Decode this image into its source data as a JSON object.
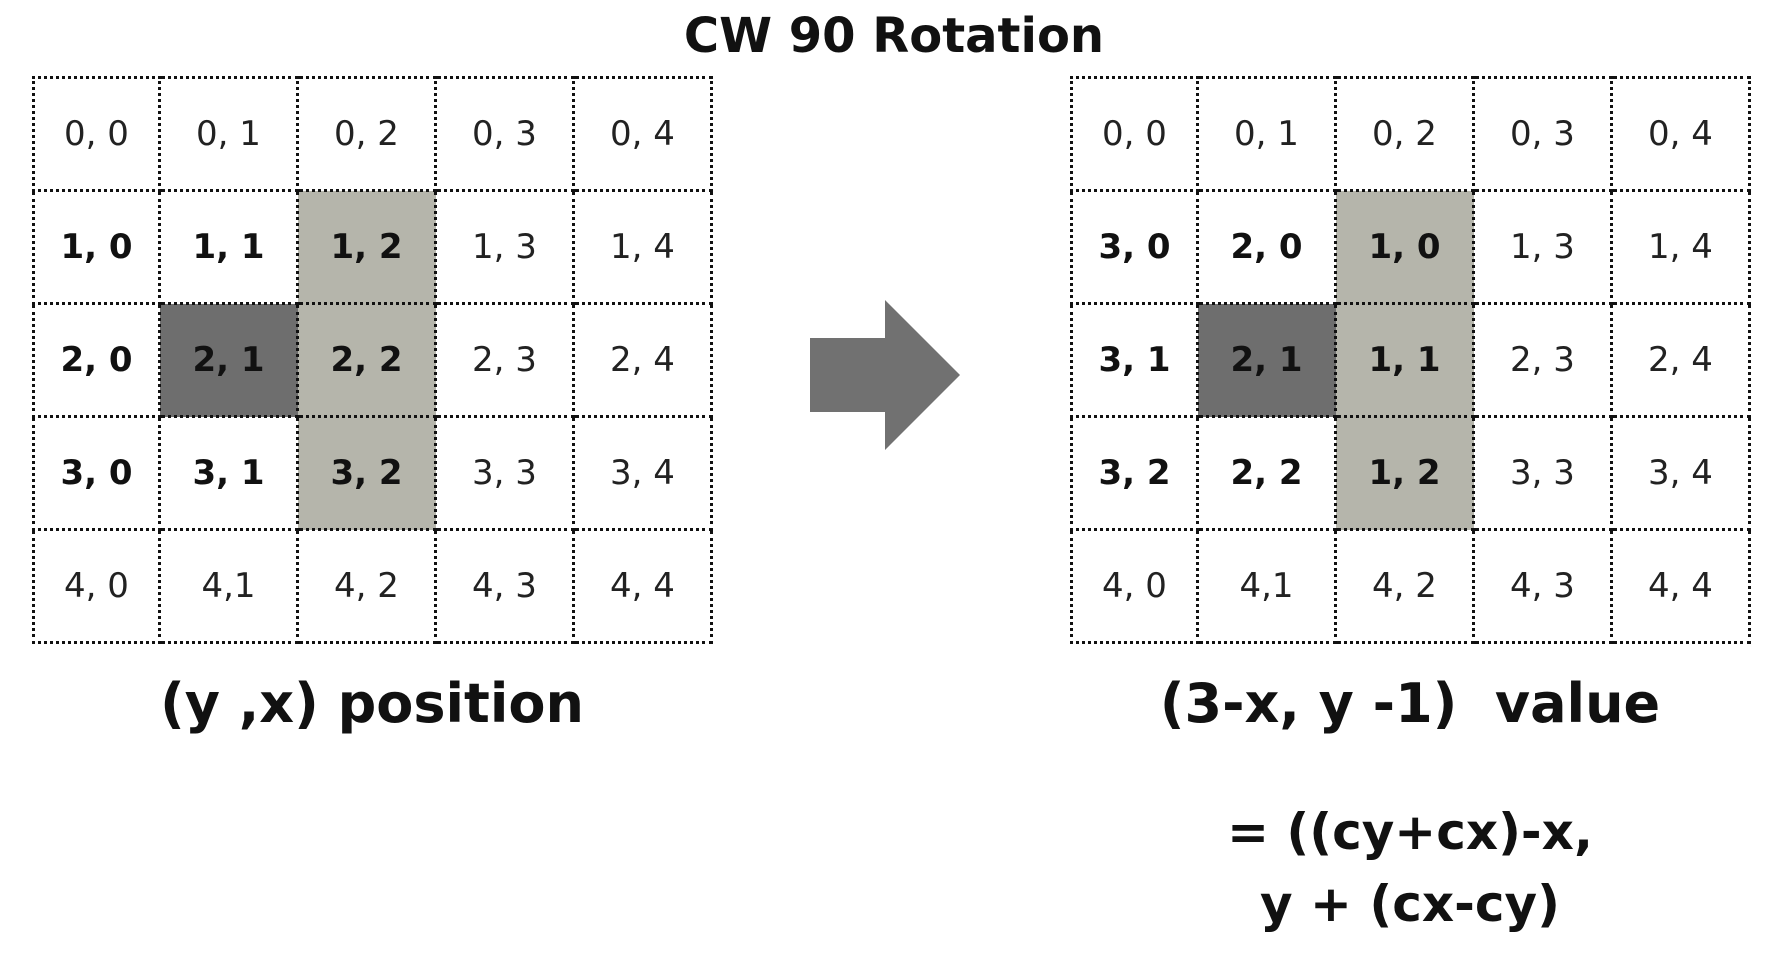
{
  "title": "CW 90 Rotation",
  "colors": {
    "highlight_light": "#b5b5ab",
    "highlight_dark": "#6e6e6e",
    "arrow": "#717171",
    "grid_border": "#111111"
  },
  "left_grid": {
    "rows": [
      [
        "0, 0",
        "0, 1",
        "0, 2",
        "0, 3",
        "0, 4"
      ],
      [
        "1, 0",
        "1, 1",
        "1, 2",
        "1, 3",
        "1, 4"
      ],
      [
        "2, 0",
        "2, 1",
        "2, 2",
        "2, 3",
        "2, 4"
      ],
      [
        "3, 0",
        "3, 1",
        "3, 2",
        "3, 3",
        "3, 4"
      ],
      [
        "4, 0",
        "4,1",
        "4, 2",
        "4, 3",
        "4, 4"
      ]
    ],
    "caption": "(y ,x) position"
  },
  "right_grid": {
    "rows": [
      [
        "0, 0",
        "0, 1",
        "0, 2",
        "0, 3",
        "0, 4"
      ],
      [
        "3, 0",
        "2, 0",
        "1, 0",
        "1, 3",
        "1, 4"
      ],
      [
        "3, 1",
        "2, 1",
        "1, 1",
        "2, 3",
        "2, 4"
      ],
      [
        "3, 2",
        "2, 2",
        "1, 2",
        "3, 3",
        "3, 4"
      ],
      [
        "4, 0",
        "4,1",
        "4, 2",
        "4, 3",
        "4, 4"
      ]
    ],
    "caption": "(3-x, y -1)  value"
  },
  "formula": {
    "line1": "= ((cy+cx)-x,",
    "line2": "y + (cx-cy)"
  },
  "arrow_icon": "right-arrow-icon"
}
